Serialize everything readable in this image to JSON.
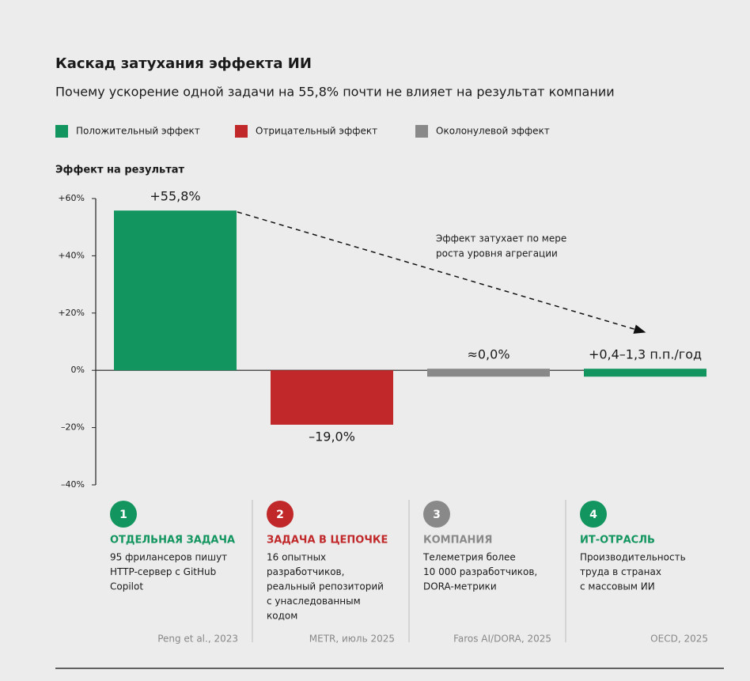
{
  "chart_data": {
    "type": "bar",
    "title": "Каскад затухания эффекта ИИ",
    "subtitle": "Почему ускорение одной задачи на 55,8% почти не влияет на результат компании",
    "legend": [
      {
        "name": "Положительный эффект",
        "color": "#12955f"
      },
      {
        "name": "Отрицательный эффект",
        "color": "#c0282a"
      },
      {
        "name": "Околонулевой эффект",
        "color": "#898989"
      }
    ],
    "y_label": "Эффект на результат",
    "annotation": [
      "Эффект затухает по мере",
      "роста уровня агрегации"
    ],
    "categories": [
      "ОТДЕЛЬНАЯ ЗАДАЧА",
      "ЗАДАЧА В ЦЕПОЧКЕ",
      "КОМПАНИЯ",
      "ИТ-ОТРАСЛЬ"
    ],
    "values": [
      55.8,
      -19.0,
      0.0,
      1.3
    ],
    "value_labels": [
      "+55,8%",
      "–19,0%",
      "≈0,0%",
      "+0,4–1,3 п.п./год"
    ],
    "colors": [
      "#12955f",
      "#c0282a",
      "#898989",
      "#12955f"
    ],
    "ylim": [
      -40,
      60
    ],
    "yticks": [
      {
        "value": -40,
        "label": "–40%"
      },
      {
        "value": -20,
        "label": "–20%"
      },
      {
        "value": 0,
        "label": "0%"
      },
      {
        "value": 20,
        "label": "+20%"
      },
      {
        "value": 40,
        "label": "+40%"
      },
      {
        "value": 60,
        "label": "+60%"
      }
    ],
    "cards": [
      {
        "number": "1",
        "lines": [
          "95 фрилансеров пишут",
          "HTTP-сервер с GitHub",
          "Copilot"
        ],
        "source": "Peng et al., 2023"
      },
      {
        "number": "2",
        "lines": [
          "16 опытных",
          "разработчиков,",
          "реальный репозиторий",
          "с унаследованным",
          "кодом"
        ],
        "source": "METR, июль 2025"
      },
      {
        "number": "3",
        "lines": [
          "Телеметрия более",
          "10 000 разработчиков,",
          "DORA-метрики"
        ],
        "source": "Faros AI/DORA, 2025"
      },
      {
        "number": "4",
        "lines": [
          "Производительность",
          "труда в странах",
          "с массовым ИИ"
        ],
        "source": "OECD, 2025"
      }
    ]
  }
}
